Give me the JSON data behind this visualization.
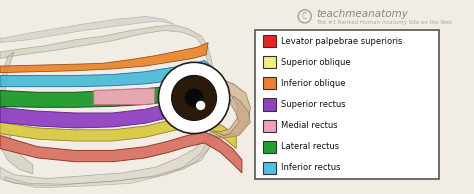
{
  "legend_items": [
    {
      "label": "Levator palpebrae superioris",
      "color": "#EE2222"
    },
    {
      "label": "Superior oblique",
      "color": "#F0F080"
    },
    {
      "label": "Inferior oblique",
      "color": "#F08030"
    },
    {
      "label": "Superior rectus",
      "color": "#9040C0"
    },
    {
      "label": "Medial rectus",
      "color": "#F0A0B8"
    },
    {
      "label": "Lateral rectus",
      "color": "#20A030"
    },
    {
      "label": "Inferior rectus",
      "color": "#50C0E0"
    }
  ],
  "background_color": "#F2EDE4",
  "figure_width": 4.74,
  "figure_height": 1.94,
  "dpi": 100
}
